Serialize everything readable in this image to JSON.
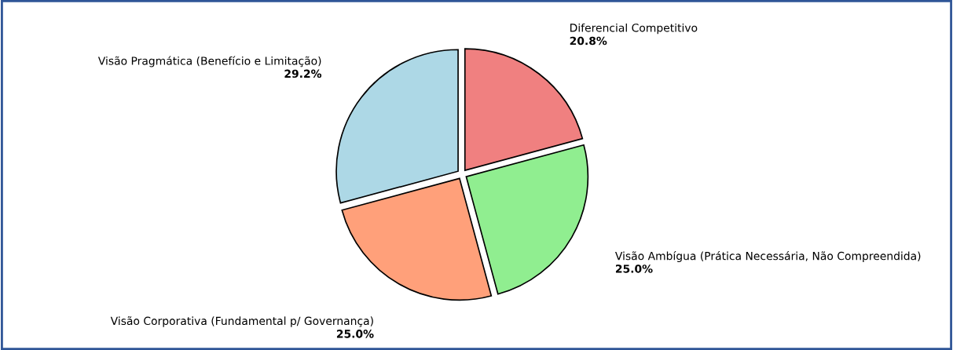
{
  "chart_data": {
    "type": "pie",
    "categories": [
      "Visão Pragmática (Benefício e Limitação)",
      "Visão Corporativa (Fundamental p/ Governança)",
      "Visão Ambígua (Prática Necessária, Não Compreendida)",
      "Diferencial Competitivo"
    ],
    "values": [
      29.2,
      25.0,
      25.0,
      20.8
    ],
    "value_labels": [
      "29.2%",
      "25.0%",
      "25.0%",
      "20.8%"
    ],
    "colors": [
      "#add8e6",
      "#ffa07a",
      "#90ee90",
      "#f08080"
    ]
  }
}
